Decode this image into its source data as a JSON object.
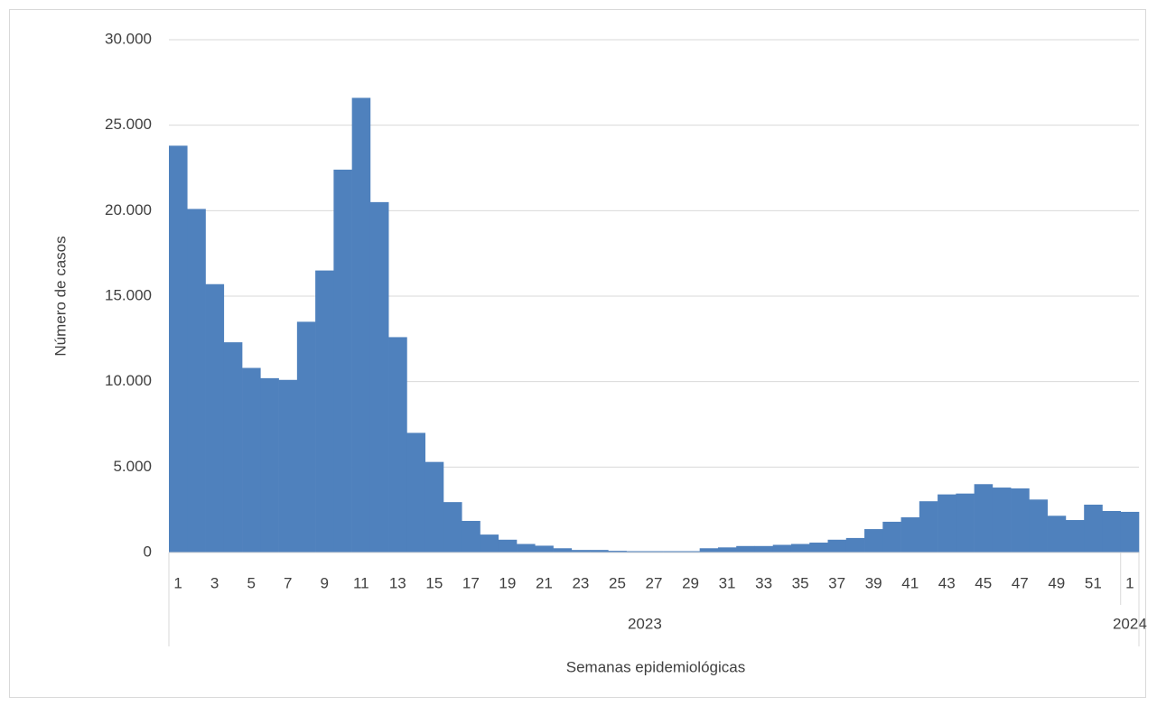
{
  "chart_data": {
    "type": "bar",
    "y_label": "Número de casos",
    "x_label": "Semanas epidemiológicas",
    "categories": [
      "1",
      null,
      "3",
      null,
      "5",
      null,
      "7",
      null,
      "9",
      null,
      "11",
      null,
      "13",
      null,
      "15",
      null,
      "17",
      null,
      "19",
      null,
      "21",
      null,
      "23",
      null,
      "25",
      null,
      "27",
      null,
      "29",
      null,
      "31",
      null,
      "33",
      null,
      "35",
      null,
      "37",
      null,
      "39",
      null,
      "41",
      null,
      "43",
      null,
      "45",
      null,
      "47",
      null,
      "49",
      null,
      "51",
      null,
      "1"
    ],
    "groups": [
      {
        "name": "2023",
        "count": 52
      },
      {
        "name": "2024",
        "count": 1
      }
    ],
    "values": [
      23800,
      20100,
      15700,
      12300,
      10800,
      10200,
      10100,
      13500,
      16500,
      22400,
      26600,
      20500,
      12600,
      7000,
      5300,
      2950,
      1850,
      1050,
      750,
      500,
      400,
      250,
      150,
      150,
      100,
      80,
      80,
      80,
      80,
      250,
      300,
      380,
      380,
      450,
      500,
      580,
      750,
      850,
      1370,
      1800,
      2060,
      3000,
      3400,
      3450,
      4000,
      3800,
      3750,
      3100,
      2150,
      1900,
      2800,
      2430,
      2380
    ],
    "color": "#4f81bd",
    "ylim": [
      0,
      30000
    ],
    "yticks": [
      0,
      {
        "value": 5000,
        "label": "5.000"
      },
      {
        "value": 10000,
        "label": "10.000"
      },
      {
        "value": 15000,
        "label": "15.000"
      },
      {
        "value": 20000,
        "label": "20.000"
      },
      {
        "value": 25000,
        "label": "25.000"
      },
      {
        "value": 30000,
        "label": "30.000"
      }
    ],
    "grid": true
  }
}
